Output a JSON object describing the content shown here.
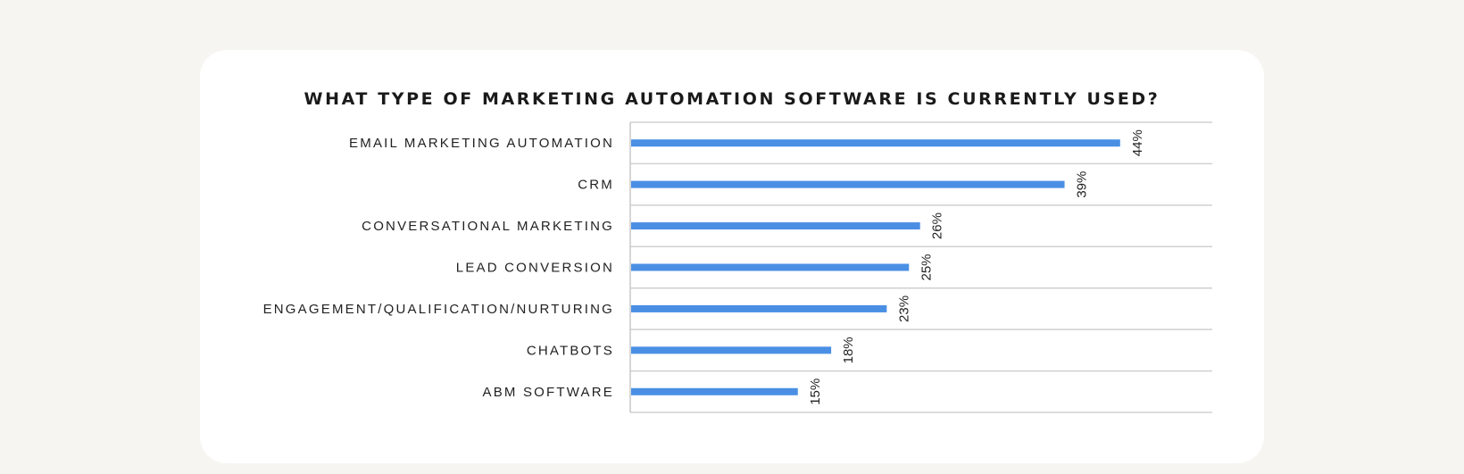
{
  "chart_data": {
    "type": "bar",
    "orientation": "horizontal",
    "title": "WHAT TYPE OF MARKETING AUTOMATION SOFTWARE IS CURRENTLY USED?",
    "categories": [
      "EMAIL MARKETING AUTOMATION",
      "CRM",
      "CONVERSATIONAL MARKETING",
      "LEAD CONVERSION",
      "ENGAGEMENT/QUALIFICATION/NURTURING",
      "CHATBOTS",
      "ABM SOFTWARE"
    ],
    "values": [
      44,
      39,
      26,
      25,
      23,
      18,
      15
    ],
    "data_labels": [
      "44%",
      "39%",
      "26%",
      "25%",
      "23%",
      "18%",
      "15%"
    ],
    "unit": "%",
    "xlim": [
      0,
      50
    ],
    "grid": true,
    "legend": "none",
    "bar_color": "#4a8fe4"
  }
}
